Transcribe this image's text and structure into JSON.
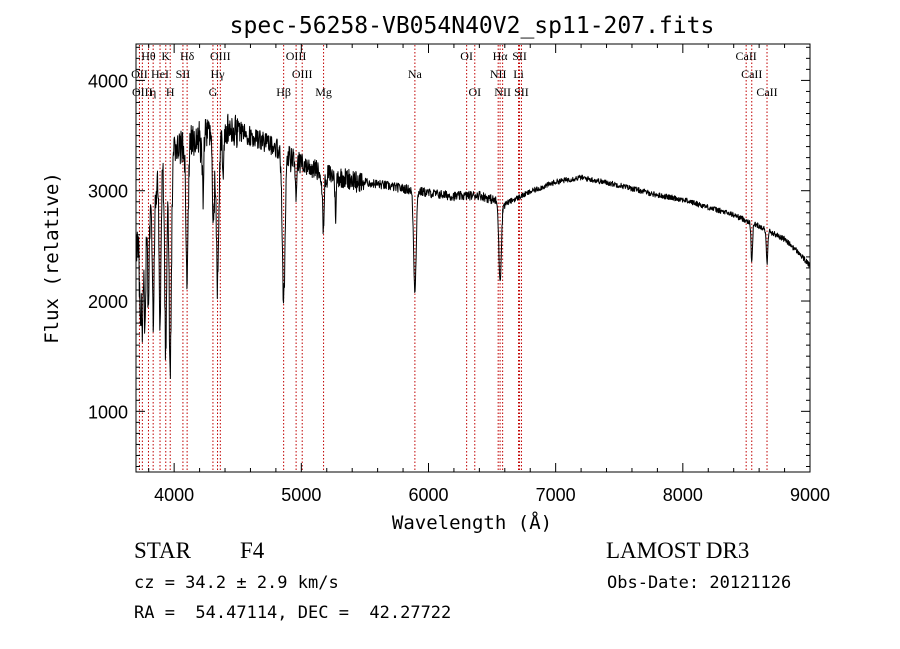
{
  "chart_data": {
    "type": "line",
    "title": "spec-56258-VB054N40V2_sp11-207.fits",
    "xlabel": "Wavelength (Å)",
    "ylabel": "Flux (relative)",
    "xlim": [
      3700,
      9000
    ],
    "ylim": [
      450,
      4330
    ],
    "xticks": [
      4000,
      5000,
      6000,
      7000,
      8000,
      9000
    ],
    "xtick_labels": [
      "4000",
      "5000",
      "6000",
      "7000",
      "8000",
      "9000"
    ],
    "yticks": [
      1000,
      2000,
      3000,
      4000
    ],
    "ytick_labels": [
      "1000",
      "2000",
      "3000",
      "4000"
    ],
    "series": [
      {
        "name": "spectrum",
        "continuum": {
          "x": [
            3700,
            3760,
            3800,
            3900,
            4000,
            4100,
            4200,
            4300,
            4400,
            4500,
            4700,
            4900,
            5000,
            5200,
            5500,
            5800,
            6000,
            6200,
            6400,
            6500,
            6600,
            6800,
            7000,
            7200,
            7500,
            7800,
            8000,
            8200,
            8400,
            8600,
            8800,
            8900,
            9000
          ],
          "y": [
            2450,
            2650,
            2850,
            3150,
            3350,
            3450,
            3500,
            3530,
            3560,
            3550,
            3450,
            3330,
            3250,
            3150,
            3080,
            3020,
            2980,
            2950,
            2960,
            2920,
            2880,
            2990,
            3080,
            3120,
            3050,
            2960,
            2920,
            2850,
            2780,
            2680,
            2560,
            2450,
            2320
          ]
        },
        "absorption_lines": [
          {
            "center": 3734,
            "depth": 700,
            "width": 6
          },
          {
            "center": 3750,
            "depth": 900,
            "width": 6
          },
          {
            "center": 3771,
            "depth": 1000,
            "width": 6
          },
          {
            "center": 3798,
            "depth": 900,
            "width": 6
          },
          {
            "center": 3836,
            "depth": 1100,
            "width": 7
          },
          {
            "center": 3889,
            "depth": 1300,
            "width": 7
          },
          {
            "center": 3934,
            "depth": 1700,
            "width": 8
          },
          {
            "center": 3969,
            "depth": 1900,
            "width": 9
          },
          {
            "center": 4102,
            "depth": 1200,
            "width": 9
          },
          {
            "center": 4227,
            "depth": 600,
            "width": 5
          },
          {
            "center": 4308,
            "depth": 900,
            "width": 7
          },
          {
            "center": 4341,
            "depth": 1400,
            "width": 10
          },
          {
            "center": 4383,
            "depth": 500,
            "width": 5
          },
          {
            "center": 4861,
            "depth": 1350,
            "width": 11
          },
          {
            "center": 4957,
            "depth": 350,
            "width": 5
          },
          {
            "center": 5173,
            "depth": 500,
            "width": 7
          },
          {
            "center": 5270,
            "depth": 350,
            "width": 5
          },
          {
            "center": 5893,
            "depth": 900,
            "width": 10
          },
          {
            "center": 6563,
            "depth": 700,
            "width": 10
          },
          {
            "center": 8542,
            "depth": 350,
            "width": 6
          },
          {
            "center": 8662,
            "depth": 300,
            "width": 6
          }
        ]
      }
    ],
    "line_markers": [
      {
        "label": "Hθ",
        "wavelength": 3798,
        "row": 1
      },
      {
        "label": "OII",
        "wavelength": 3727,
        "row": 2
      },
      {
        "label": "OIII",
        "wavelength": 3750,
        "row": 3
      },
      {
        "label": "HeI",
        "wavelength": 3889,
        "row": 2
      },
      {
        "label": "K",
        "wavelength": 3934,
        "row": 1
      },
      {
        "label": "η",
        "wavelength": 3835,
        "row": 3
      },
      {
        "label": "SII",
        "wavelength": 4069,
        "row": 2
      },
      {
        "label": "H",
        "wavelength": 3969,
        "row": 3
      },
      {
        "label": "Hδ",
        "wavelength": 4102,
        "row": 1
      },
      {
        "label": "OIII",
        "wavelength": 4363,
        "row": 1
      },
      {
        "label": "Hγ",
        "wavelength": 4341,
        "row": 2
      },
      {
        "label": "G",
        "wavelength": 4305,
        "row": 3
      },
      {
        "label": "OIII",
        "wavelength": 4959,
        "row": 1
      },
      {
        "label": "OIII",
        "wavelength": 5007,
        "row": 2
      },
      {
        "label": "Hβ",
        "wavelength": 4861,
        "row": 3
      },
      {
        "label": "Mg",
        "wavelength": 5175,
        "row": 3
      },
      {
        "label": "Na",
        "wavelength": 5893,
        "row": 2
      },
      {
        "label": "OI",
        "wavelength": 6300,
        "row": 1
      },
      {
        "label": "OI",
        "wavelength": 6364,
        "row": 3
      },
      {
        "label": "Hα",
        "wavelength": 6563,
        "row": 1
      },
      {
        "label": "SII",
        "wavelength": 6716,
        "row": 1
      },
      {
        "label": "NII",
        "wavelength": 6548,
        "row": 2
      },
      {
        "label": "Li",
        "wavelength": 6708,
        "row": 2
      },
      {
        "label": "NII",
        "wavelength": 6583,
        "row": 3
      },
      {
        "label": "SII",
        "wavelength": 6731,
        "row": 3
      },
      {
        "label": "CaII",
        "wavelength": 8498,
        "row": 1
      },
      {
        "label": "CaII",
        "wavelength": 8542,
        "row": 2
      },
      {
        "label": "CaII",
        "wavelength": 8662,
        "row": 3
      }
    ],
    "marker_color": "#c00000"
  },
  "footer": {
    "object_class": "STAR",
    "subclass": "F4",
    "redshift_text": "cz = 34.2 ± 2.9 km/s",
    "coords_text": "RA =  54.47114, DEC =  42.27722",
    "survey": "LAMOST DR3",
    "obs_date_text": "Obs-Date: 20121126"
  }
}
